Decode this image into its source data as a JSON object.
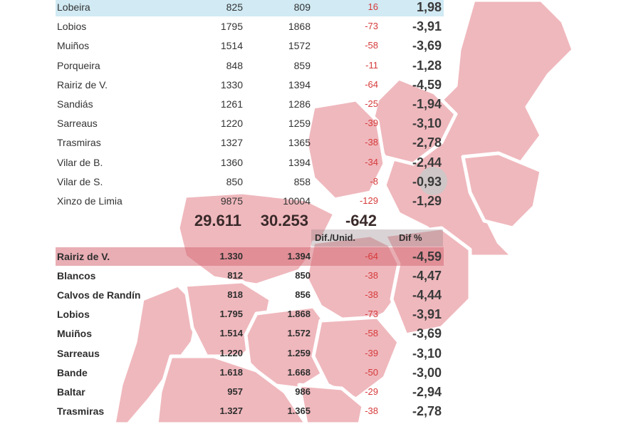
{
  "table_top": {
    "rows": [
      {
        "name": "Lobeira",
        "v1": "825",
        "v2": "809",
        "diff": "16",
        "pct": "1,98"
      },
      {
        "name": "Lobios",
        "v1": "1795",
        "v2": "1868",
        "diff": "-73",
        "pct": "-3,91"
      },
      {
        "name": "Muiños",
        "v1": "1514",
        "v2": "1572",
        "diff": "-58",
        "pct": "-3,69"
      },
      {
        "name": "Porqueira",
        "v1": "848",
        "v2": "859",
        "diff": "-11",
        "pct": "-1,28"
      },
      {
        "name": "Rairiz de V.",
        "v1": "1330",
        "v2": "1394",
        "diff": "-64",
        "pct": "-4,59"
      },
      {
        "name": "Sandiás",
        "v1": "1261",
        "v2": "1286",
        "diff": "-25",
        "pct": "-1,94"
      },
      {
        "name": "Sarreaus",
        "v1": "1220",
        "v2": "1259",
        "diff": "-39",
        "pct": "-3,10"
      },
      {
        "name": "Trasmiras",
        "v1": "1327",
        "v2": "1365",
        "diff": "-38",
        "pct": "-2,78"
      },
      {
        "name": "Vilar de B.",
        "v1": "1360",
        "v2": "1394",
        "diff": "-34",
        "pct": "-2,44"
      },
      {
        "name": "Vilar de S.",
        "v1": "850",
        "v2": "858",
        "diff": "-8",
        "pct": "-0,93"
      },
      {
        "name": "Xinzo de Limia",
        "v1": "9875",
        "v2": "10004",
        "diff": "-129",
        "pct": "-1,29"
      }
    ]
  },
  "totals": {
    "v1": "29.611",
    "v2": "30.253",
    "diff": "-642"
  },
  "headers": {
    "diff": "Dif./Unid.",
    "pct": "Dif %"
  },
  "table_bottom": {
    "rows": [
      {
        "name": "Rairiz de V.",
        "v1": "1.330",
        "v2": "1.394",
        "diff": "-64",
        "pct": "-4,59"
      },
      {
        "name": "Blancos",
        "v1": "812",
        "v2": "850",
        "diff": "-38",
        "pct": "-4,47"
      },
      {
        "name": "Calvos de Randín",
        "v1": "818",
        "v2": "856",
        "diff": "-38",
        "pct": "-4,44"
      },
      {
        "name": "Lobios",
        "v1": "1.795",
        "v2": "1.868",
        "diff": "-73",
        "pct": "-3,91"
      },
      {
        "name": "Muiños",
        "v1": "1.514",
        "v2": "1.572",
        "diff": "-58",
        "pct": "-3,69"
      },
      {
        "name": "Sarreaus",
        "v1": "1.220",
        "v2": "1.259",
        "diff": "-39",
        "pct": "-3,10"
      },
      {
        "name": "Bande",
        "v1": "1.618",
        "v2": "1.668",
        "diff": "-50",
        "pct": "-3,00"
      },
      {
        "name": "Baltar",
        "v1": "957",
        "v2": "986",
        "diff": "-29",
        "pct": "-2,94"
      },
      {
        "name": "Trasmiras",
        "v1": "1.327",
        "v2": "1.365",
        "diff": "-38",
        "pct": "-2,78"
      }
    ]
  },
  "colors": {
    "map_fill": "#e8a3aa",
    "highlight_blue": "#cde8f3",
    "highlight_red": "#d66c76",
    "negative": "#d63a3a"
  }
}
